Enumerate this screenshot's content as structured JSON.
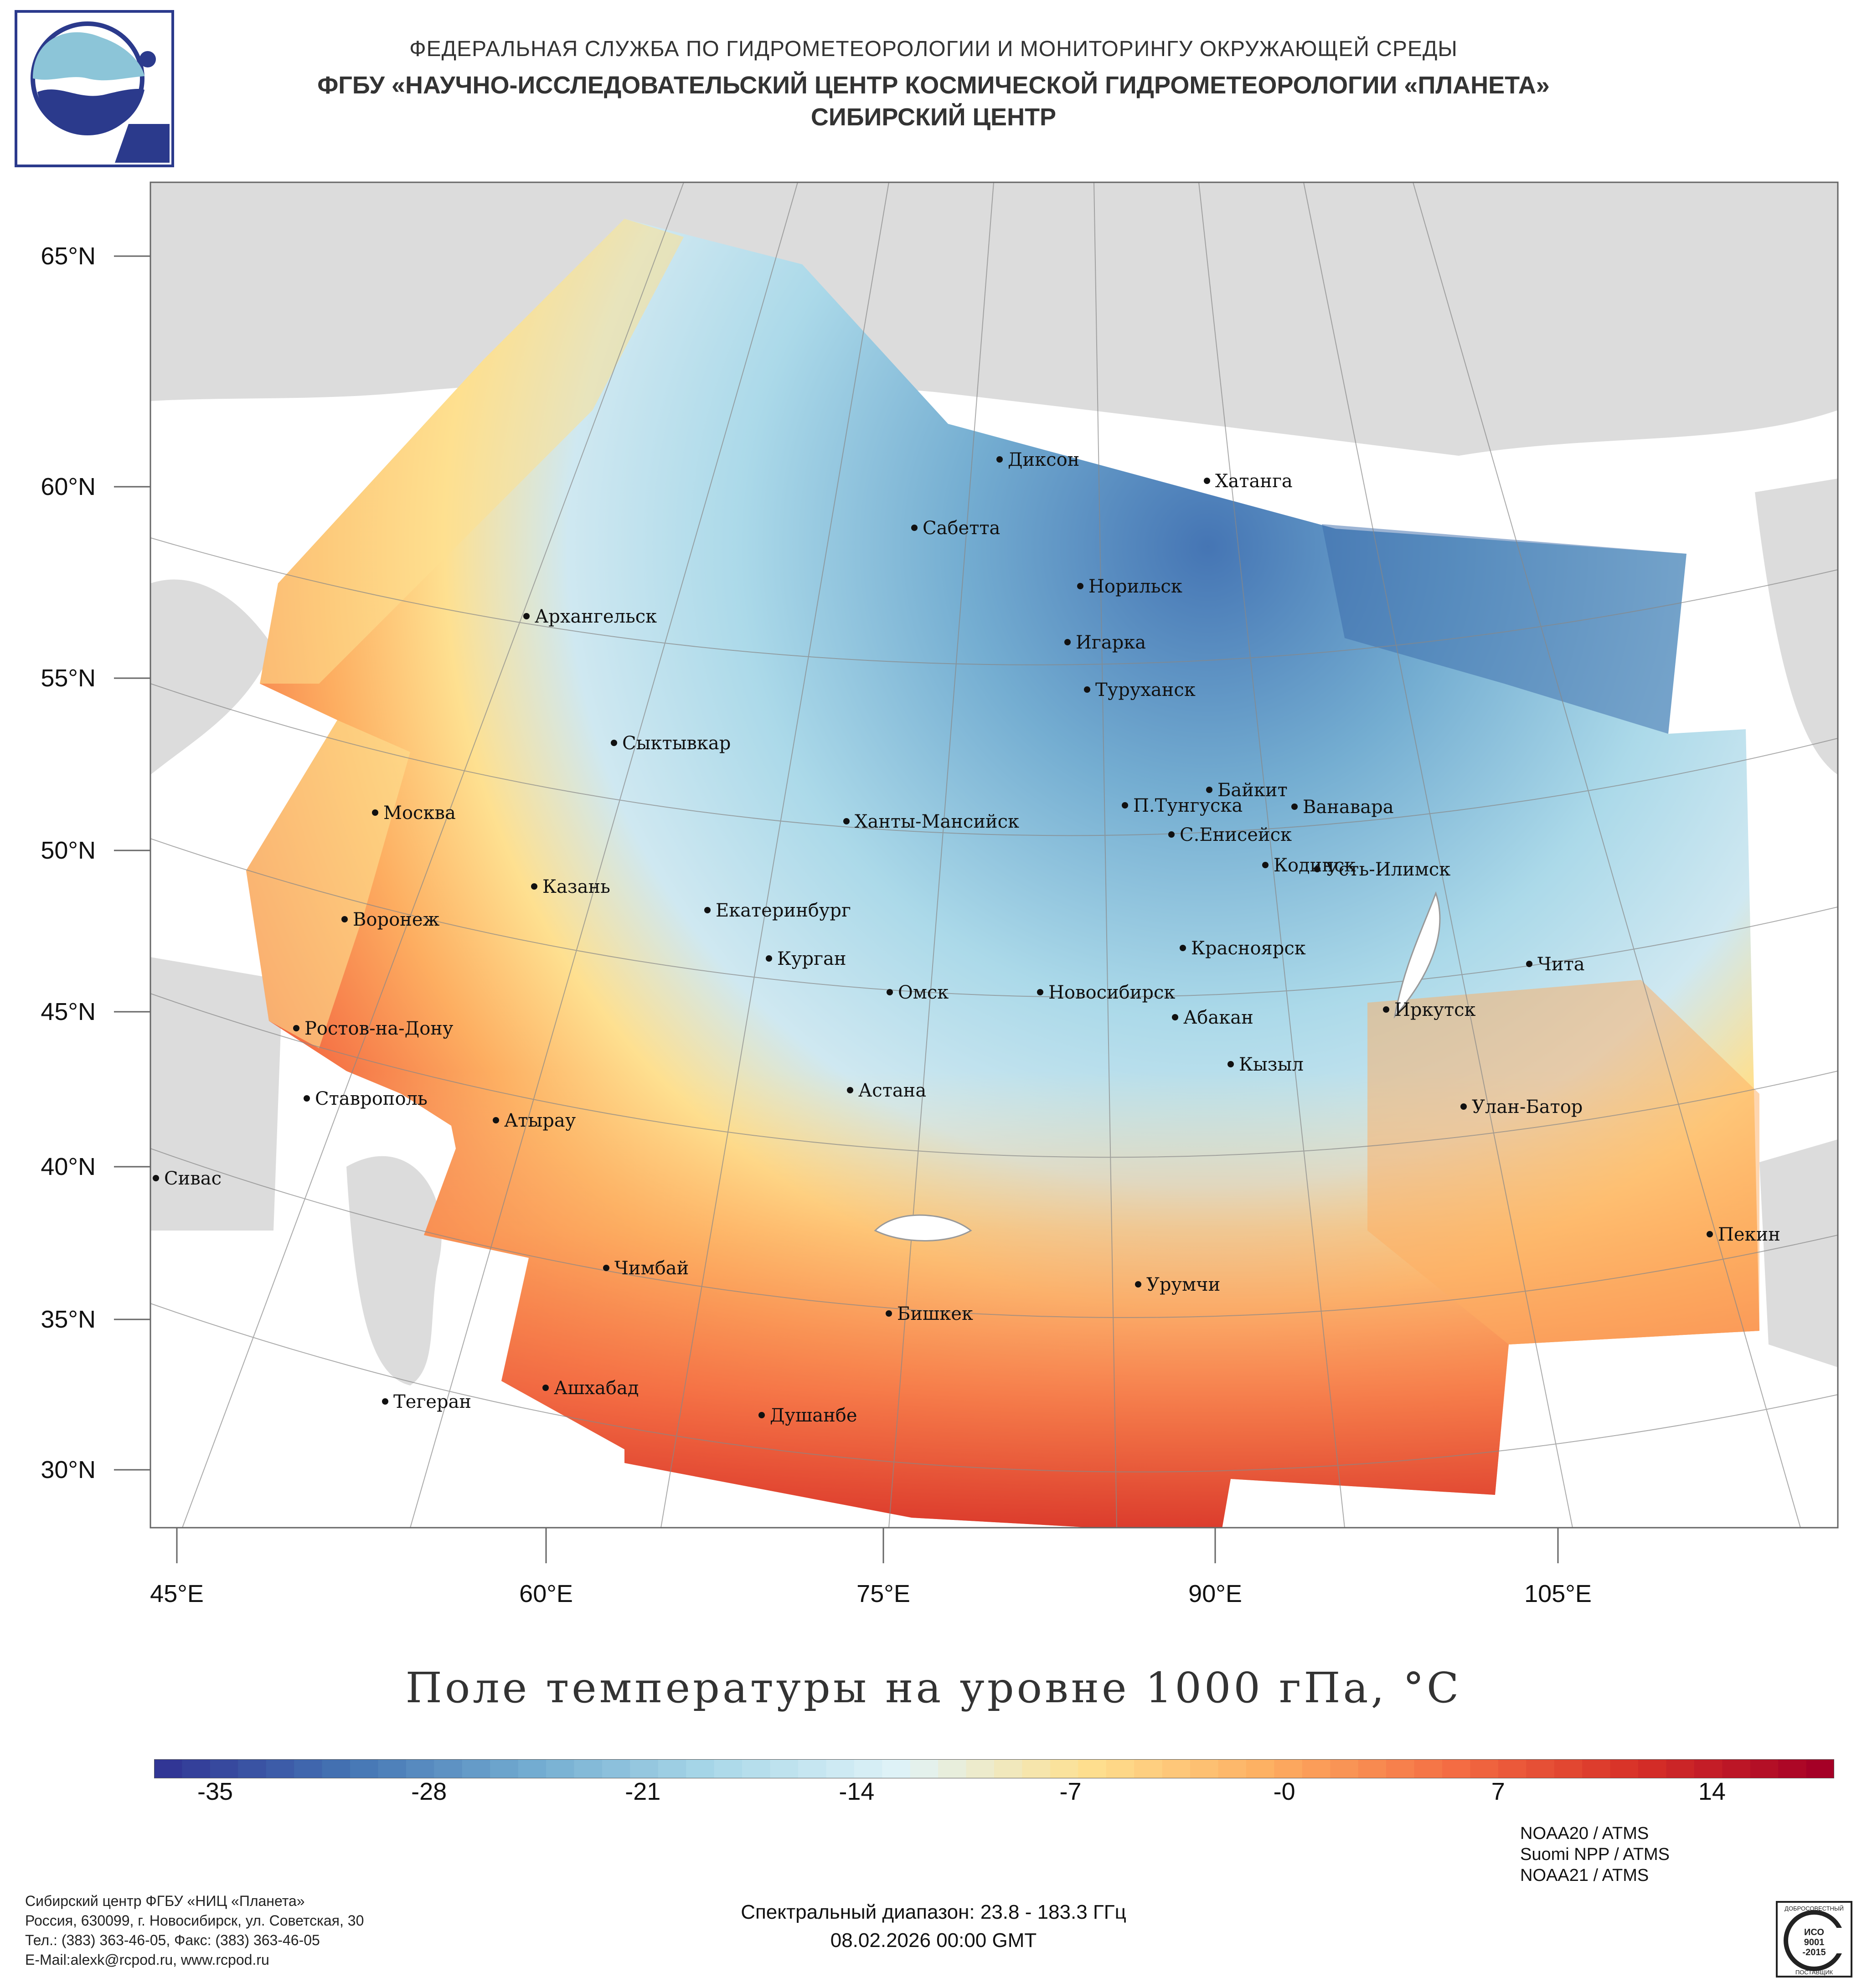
{
  "header": {
    "line1": "ФЕДЕРАЛЬНАЯ СЛУЖБА ПО ГИДРОМЕТЕОРОЛОГИИ И МОНИТОРИНГУ ОКРУЖАЮЩЕЙ СРЕДЫ",
    "line2": "ФГБУ «НАУЧНО-ИССЛЕДОВАТЕЛЬСКИЙ ЦЕНТР КОСМИЧЕСКОЙ ГИДРОМЕТЕОРОЛОГИИ «ПЛАНЕТА»",
    "line3": "СИБИРСКИЙ ЦЕНТР"
  },
  "map": {
    "lat_labels": [
      "65°N",
      "60°N",
      "55°N",
      "50°N",
      "45°N",
      "40°N",
      "35°N",
      "30°N"
    ],
    "lon_labels": [
      "45°E",
      "60°E",
      "75°E",
      "90°E",
      "105°E"
    ],
    "cities": [
      {
        "name": "Диксон",
        "lon": 80.5,
        "lat": 73.5
      },
      {
        "name": "Хатанга",
        "lon": 102.5,
        "lat": 72.0
      },
      {
        "name": "Сабетта",
        "lon": 72.0,
        "lat": 71.3
      },
      {
        "name": "Норильск",
        "lon": 88.2,
        "lat": 69.3
      },
      {
        "name": "Архангельск",
        "lon": 40.5,
        "lat": 64.5
      },
      {
        "name": "Игарка",
        "lon": 86.6,
        "lat": 67.5
      },
      {
        "name": "Туруханск",
        "lon": 87.9,
        "lat": 65.8
      },
      {
        "name": "Сыктывкар",
        "lon": 50.8,
        "lat": 61.7
      },
      {
        "name": "Байкит",
        "lon": 96.4,
        "lat": 61.7
      },
      {
        "name": "П.Тунгуска",
        "lon": 90.1,
        "lat": 61.6
      },
      {
        "name": "Ванавара",
        "lon": 102.3,
        "lat": 60.3
      },
      {
        "name": "Москва",
        "lon": 37.6,
        "lat": 55.8
      },
      {
        "name": "Ханты-Мансийск",
        "lon": 69.0,
        "lat": 61.0
      },
      {
        "name": "С.Енисейск",
        "lon": 92.5,
        "lat": 59.4
      },
      {
        "name": "Кодинск",
        "lon": 99.2,
        "lat": 58.6
      },
      {
        "name": "Усть-Илимск",
        "lon": 102.7,
        "lat": 58.0
      },
      {
        "name": "Казань",
        "lon": 49.1,
        "lat": 55.8
      },
      {
        "name": "Екатеринбург",
        "lon": 60.6,
        "lat": 56.8
      },
      {
        "name": "Воронеж",
        "lon": 39.2,
        "lat": 51.7
      },
      {
        "name": "Курган",
        "lon": 65.3,
        "lat": 55.4
      },
      {
        "name": "Красноярск",
        "lon": 92.9,
        "lat": 56.0
      },
      {
        "name": "Чита",
        "lon": 113.5,
        "lat": 52.0
      },
      {
        "name": "Омск",
        "lon": 73.4,
        "lat": 55.0
      },
      {
        "name": "Новосибирск",
        "lon": 82.9,
        "lat": 55.0
      },
      {
        "name": "Абакан",
        "lon": 91.4,
        "lat": 53.7
      },
      {
        "name": "Иркутск",
        "lon": 104.3,
        "lat": 52.3
      },
      {
        "name": "Ростов-на-Дону",
        "lon": 39.7,
        "lat": 47.2
      },
      {
        "name": "Кызыл",
        "lon": 94.4,
        "lat": 51.7
      },
      {
        "name": "Ставрополь",
        "lon": 42.0,
        "lat": 45.0
      },
      {
        "name": "Астана",
        "lon": 71.4,
        "lat": 51.2
      },
      {
        "name": "Улан-Батор",
        "lon": 106.9,
        "lat": 47.9
      },
      {
        "name": "Атырау",
        "lon": 51.9,
        "lat": 47.1
      },
      {
        "name": "Сивас",
        "lon": 37.0,
        "lat": 39.7
      },
      {
        "name": "Пекин",
        "lon": 116.4,
        "lat": 39.9
      },
      {
        "name": "Чимбай",
        "lon": 59.8,
        "lat": 42.9
      },
      {
        "name": "Урумчи",
        "lon": 87.6,
        "lat": 43.8
      },
      {
        "name": "Бишкек",
        "lon": 74.6,
        "lat": 42.9
      },
      {
        "name": "Ашхабад",
        "lon": 58.4,
        "lat": 37.9
      },
      {
        "name": "Тегеран",
        "lon": 51.4,
        "lat": 35.7
      },
      {
        "name": "Душанбе",
        "lon": 68.8,
        "lat": 38.6
      }
    ]
  },
  "title": "Поле температуры на уровне 1000 гПа, °C",
  "colorbar": {
    "ticks": [
      "-35",
      "-28",
      "-21",
      "-14",
      "-7",
      "-0",
      "7",
      "14"
    ],
    "min": -37,
    "max": 18,
    "colors": [
      "#313695",
      "#4575b4",
      "#74add1",
      "#abd9e9",
      "#e0f3f8",
      "#fee090",
      "#fdae61",
      "#f46d43",
      "#d73027",
      "#a50026"
    ]
  },
  "footer": {
    "org": "Сибирский центр ФГБУ «НИЦ «Планета»",
    "address": "Россия, 630099, г. Новосибирск, ул. Советская, 30",
    "phone": "Тел.: (383) 363-46-05, Факс: (383) 363-46-05",
    "email": "E-Mail:alexk@rcpod.ru, www.rcpod.ru",
    "spectral": "Спектральный диапазон: 23.8 - 183.3 ГГц",
    "datetime": "08.02.2026 00:00 GMT",
    "sensors": [
      "NOAA20 / ATMS",
      "Suomi NPP / ATMS",
      "NOAA21 / ATMS"
    ],
    "iso_text": [
      "ДОБРОСОВЕСТНЫЙ",
      "ИСО",
      "9001",
      "-2015",
      "ПОСТАВЩИК"
    ]
  }
}
